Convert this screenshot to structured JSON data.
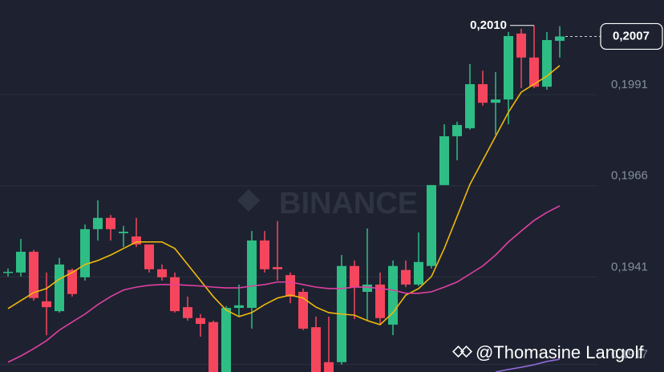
{
  "chart_data": {
    "type": "candlestick",
    "ylim": [
      0.19149,
      0.2017
    ],
    "yticks": [
      {
        "value": 0.1991,
        "label": "0,1991"
      },
      {
        "value": 0.1966,
        "label": "0,1966"
      },
      {
        "value": 0.1941,
        "label": "0,1941"
      },
      {
        "value": 0.1917,
        "label": "0,1917"
      }
    ],
    "grid": true,
    "up_color": "#2ebd85",
    "down_color": "#f6465d",
    "open": [
      0.19422,
      0.19422,
      0.19479,
      0.19343,
      0.19316,
      0.19429,
      0.19409,
      0.19541,
      0.19572,
      0.1953,
      0.19521,
      0.19499,
      0.19431,
      0.19409,
      0.19327,
      0.19297,
      0.19286,
      0.19149,
      0.19325,
      0.19325,
      0.1951,
      0.19437,
      0.19415,
      0.19369,
      0.19272,
      0.19176,
      0.19176,
      0.1944,
      0.19369,
      0.19389,
      0.19279,
      0.19429,
      0.19389,
      0.1944,
      0.19662,
      0.19796,
      0.19818,
      0.19939,
      0.19888,
      0.19897,
      0.20078,
      0.20012,
      0.19932,
      0.20058
    ],
    "high": [
      0.19433,
      0.19514,
      0.19484,
      0.19422,
      0.19462,
      0.19433,
      0.19554,
      0.1962,
      0.1958,
      0.1955,
      0.19572,
      0.19499,
      0.19444,
      0.19422,
      0.19356,
      0.19308,
      0.1929,
      0.1933,
      0.19389,
      0.19536,
      0.19536,
      0.19563,
      0.19422,
      0.19378,
      0.19301,
      0.19301,
      0.1947,
      0.19455,
      0.19543,
      0.19422,
      0.19455,
      0.19455,
      0.19532,
      0.19662,
      0.19829,
      0.19836,
      0.19994,
      0.19976,
      0.19972,
      0.20082,
      0.20091,
      0.201,
      0.20082,
      0.20098
    ],
    "low": [
      0.19411,
      0.19411,
      0.19345,
      0.1925,
      0.19312,
      0.19356,
      0.194,
      0.1951,
      0.1951,
      0.19492,
      0.19492,
      0.19422,
      0.194,
      0.19312,
      0.1929,
      0.19246,
      0.19149,
      0.19149,
      0.19301,
      0.19268,
      0.19422,
      0.194,
      0.19338,
      0.19264,
      0.19149,
      0.19149,
      0.19169,
      0.19294,
      0.1929,
      0.19279,
      0.1925,
      0.19382,
      0.19385,
      0.19433,
      0.19662,
      0.1973,
      0.19814,
      0.1988,
      0.198,
      0.19829,
      0.19928,
      0.19928,
      0.19924,
      0.20012
    ],
    "close": [
      0.19424,
      0.19479,
      0.19352,
      0.19327,
      0.19444,
      0.19363,
      0.19541,
      0.19572,
      0.19541,
      0.19534,
      0.19499,
      0.19431,
      0.19409,
      0.19316,
      0.19297,
      0.19281,
      0.19149,
      0.19325,
      0.19332,
      0.1951,
      0.19431,
      0.19431,
      0.19356,
      0.19268,
      0.19149,
      0.19149,
      0.1944,
      0.19382,
      0.19389,
      0.19297,
      0.1944,
      0.19389,
      0.19451,
      0.19662,
      0.19796,
      0.19827,
      0.19939,
      0.19888,
      0.19897,
      0.20071,
      0.20012,
      0.19932,
      0.2006,
      0.2007
    ],
    "series": [
      {
        "color": "#f0b90b",
        "values": [
          0.19323,
          0.19345,
          0.19367,
          0.19378,
          0.19404,
          0.19422,
          0.19444,
          0.19455,
          0.1947,
          0.19488,
          0.19506,
          0.19506,
          0.19506,
          0.19488,
          0.19444,
          0.194,
          0.19356,
          0.19319,
          0.19301,
          0.19312,
          0.19334,
          0.19352,
          0.1936,
          0.19352,
          0.19327,
          0.19312,
          0.19308,
          0.19305,
          0.1929,
          0.19279,
          0.19312,
          0.1936,
          0.19378,
          0.19411,
          0.19488,
          0.19576,
          0.19664,
          0.1973,
          0.19796,
          0.19862,
          0.19917,
          0.19939,
          0.19961,
          0.1999
        ]
      },
      {
        "color": "#e040a0",
        "values": [
          0.19176,
          0.19193,
          0.19213,
          0.19235,
          0.19264,
          0.19286,
          0.19308,
          0.19334,
          0.19356,
          0.19374,
          0.19382,
          0.19387,
          0.19389,
          0.19389,
          0.19387,
          0.19385,
          0.19382,
          0.1938,
          0.1938,
          0.19385,
          0.19389,
          0.19396,
          0.19396,
          0.19389,
          0.19382,
          0.19378,
          0.19378,
          0.19382,
          0.19382,
          0.19378,
          0.19374,
          0.19365,
          0.19365,
          0.19369,
          0.19382,
          0.19396,
          0.19418,
          0.1944,
          0.1947,
          0.19506,
          0.19536,
          0.19565,
          0.19587,
          0.19605
        ]
      },
      {
        "color": "#8e6bd8",
        "values": [
          null,
          null,
          null,
          null,
          null,
          null,
          null,
          null,
          null,
          null,
          null,
          null,
          null,
          null,
          null,
          null,
          null,
          null,
          null,
          null,
          null,
          null,
          null,
          null,
          null,
          null,
          null,
          null,
          null,
          null,
          null,
          null,
          null,
          null,
          null,
          null,
          null,
          null,
          0.19149,
          0.19156,
          0.19162,
          0.19169,
          0.19178,
          0.19184
        ]
      }
    ],
    "high_marker": {
      "value": 0.201,
      "label": "0,2010",
      "index": 41
    },
    "last_price": {
      "value": 0.2007,
      "label": "0,2007"
    },
    "watermark": "BINANCE",
    "credit": "@Thomasine Langolf"
  }
}
